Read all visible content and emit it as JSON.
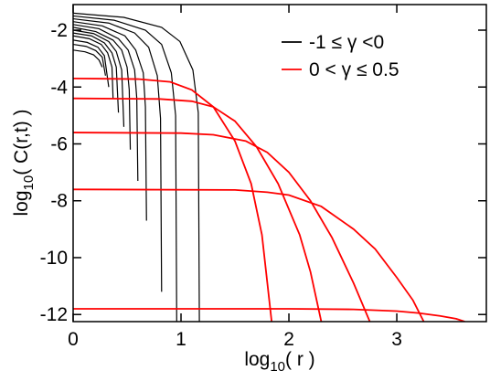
{
  "chart_data": {
    "type": "line",
    "ylabel": {
      "base": "log",
      "sub": "10",
      "arg": "( C(r,t) )"
    },
    "xlabel": {
      "base": "log",
      "sub": "10",
      "arg": "( r )"
    },
    "xlim": [
      0,
      3.83
    ],
    "ylim": [
      -12.25,
      -1.1
    ],
    "xticks": [
      0,
      1,
      2,
      3
    ],
    "yticks": [
      -2,
      -4,
      -6,
      -8,
      -10,
      -12
    ],
    "legend": "upper right",
    "series": [
      {
        "name": "-1 ≤ γ <0",
        "color": "#000000",
        "curves": [
          {
            "x": [
              0,
              0.47,
              0.82,
              0.99,
              1.11,
              1.16,
              1.17
            ],
            "values": [
              -1.4,
              -1.55,
              -1.9,
              -2.4,
              -3.4,
              -4.9,
              -12.25
            ]
          },
          {
            "x": [
              0,
              0.38,
              0.67,
              0.82,
              0.91,
              0.95,
              0.96
            ],
            "values": [
              -1.5,
              -1.65,
              -2.0,
              -2.5,
              -3.5,
              -5.0,
              -12.25
            ]
          },
          {
            "x": [
              0,
              0.33,
              0.57,
              0.7,
              0.78,
              0.81,
              0.82
            ],
            "values": [
              -1.6,
              -1.75,
              -2.1,
              -2.6,
              -3.6,
              -5.1,
              -11.2
            ]
          },
          {
            "x": [
              0,
              0.27,
              0.48,
              0.58,
              0.65,
              0.67,
              0.68
            ],
            "values": [
              -1.7,
              -1.85,
              -2.2,
              -2.7,
              -3.5,
              -4.7,
              -8.7
            ]
          },
          {
            "x": [
              0,
              0.24,
              0.42,
              0.51,
              0.57,
              0.59,
              0.6
            ],
            "values": [
              -1.8,
              -1.95,
              -2.3,
              -2.7,
              -3.4,
              -4.4,
              -7.3
            ]
          },
          {
            "x": [
              0,
              0.21,
              0.37,
              0.45,
              0.5,
              0.52,
              0.53
            ],
            "values": [
              -1.9,
              -2.05,
              -2.35,
              -2.7,
              -3.3,
              -4.1,
              -6.2
            ]
          },
          {
            "x": [
              0,
              0.19,
              0.33,
              0.4,
              0.45,
              0.47
            ],
            "values": [
              -2.0,
              -2.12,
              -2.4,
              -2.75,
              -3.4,
              -5.4
            ]
          },
          {
            "x": [
              0,
              0.17,
              0.29,
              0.36,
              0.4,
              0.42
            ],
            "values": [
              -2.1,
              -2.2,
              -2.45,
              -2.8,
              -3.3,
              -4.9
            ]
          },
          {
            "x": [
              0,
              0.15,
              0.26,
              0.32,
              0.36,
              0.37
            ],
            "values": [
              -2.2,
              -2.3,
              -2.5,
              -2.8,
              -3.3,
              -4.4
            ]
          },
          {
            "x": [
              0,
              0.13,
              0.23,
              0.29,
              0.33
            ],
            "values": [
              -2.35,
              -2.43,
              -2.6,
              -2.9,
              -4.0
            ]
          },
          {
            "x": [
              0,
              0.12,
              0.21,
              0.27,
              0.3
            ],
            "values": [
              -2.5,
              -2.57,
              -2.72,
              -2.95,
              -3.6
            ]
          },
          {
            "x": [
              0,
              0.11,
              0.19,
              0.24,
              0.27
            ],
            "values": [
              -2.7,
              -2.76,
              -2.87,
              -3.05,
              -3.3
            ]
          }
        ]
      },
      {
        "name": "0 < γ ≤ 0.5",
        "color": "#ff0000",
        "curves": [
          {
            "x": [
              0,
              0.6,
              0.9,
              1.1,
              1.3,
              1.5,
              1.65,
              1.75,
              1.84
            ],
            "values": [
              -3.7,
              -3.72,
              -3.82,
              -4.1,
              -4.7,
              -5.9,
              -7.4,
              -9.2,
              -12.25
            ]
          },
          {
            "x": [
              0,
              0.8,
              1.1,
              1.3,
              1.5,
              1.7,
              1.9,
              2.1,
              2.2,
              2.3
            ],
            "values": [
              -4.4,
              -4.42,
              -4.5,
              -4.7,
              -5.2,
              -6.1,
              -7.4,
              -9.2,
              -10.5,
              -12.25
            ]
          },
          {
            "x": [
              0,
              1,
              1.3,
              1.6,
              1.8,
              2.0,
              2.2,
              2.4,
              2.6,
              2.75
            ],
            "values": [
              -5.6,
              -5.62,
              -5.68,
              -5.9,
              -6.3,
              -7.0,
              -8.0,
              -9.3,
              -10.9,
              -12.25
            ]
          },
          {
            "x": [
              0,
              1.5,
              1.8,
              2.0,
              2.3,
              2.6,
              2.8,
              3.0,
              3.15,
              3.25
            ],
            "values": [
              -7.6,
              -7.62,
              -7.7,
              -7.8,
              -8.2,
              -9.0,
              -9.7,
              -10.7,
              -11.5,
              -12.25
            ]
          },
          {
            "x": [
              0,
              2,
              2.6,
              3.0,
              3.2,
              3.4,
              3.55,
              3.63
            ],
            "values": [
              -11.8,
              -11.8,
              -11.82,
              -11.88,
              -11.95,
              -12.05,
              -12.15,
              -12.25
            ]
          }
        ]
      }
    ]
  }
}
